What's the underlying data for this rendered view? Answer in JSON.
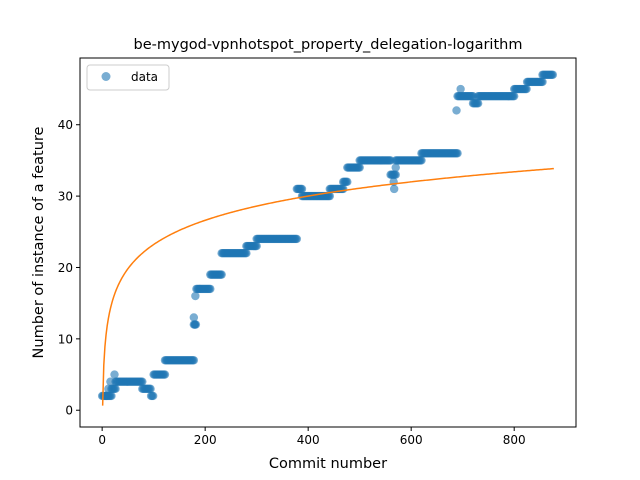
{
  "chart_data": {
    "type": "scatter",
    "title": "be-mygod-vpnhotspot_property_delegation-logarithm",
    "xlabel": "Commit number",
    "ylabel": "Number of instance of a feature",
    "xlim": [
      -43,
      920
    ],
    "ylim": [
      -2.35,
      49.35
    ],
    "xticks": [
      0,
      200,
      400,
      600,
      800
    ],
    "yticks": [
      0,
      10,
      20,
      30,
      40
    ],
    "grid": false,
    "legend": {
      "placement": "top-left",
      "entries": [
        {
          "label": "data",
          "color": "#1f77b4"
        }
      ]
    },
    "colors": {
      "data": "#1f77b4",
      "fit": "#ff7f0e"
    },
    "series": [
      {
        "name": "data",
        "kind": "scatter",
        "segments": [
          {
            "x_start": 0,
            "x_end": 18,
            "y": 2
          },
          {
            "x_start": 18,
            "x_end": 26,
            "y": 3
          },
          {
            "x_start": 26,
            "x_end": 78,
            "y": 4
          },
          {
            "x_start": 78,
            "x_end": 95,
            "y": 3
          },
          {
            "x_start": 95,
            "x_end": 100,
            "y": 2
          },
          {
            "x_start": 100,
            "x_end": 122,
            "y": 5
          },
          {
            "x_start": 122,
            "x_end": 178,
            "y": 7
          },
          {
            "x_start": 178,
            "x_end": 183,
            "y": 12
          },
          {
            "x_start": 183,
            "x_end": 190,
            "y": 17
          },
          {
            "x_start": 190,
            "x_end": 210,
            "y": 17
          },
          {
            "x_start": 210,
            "x_end": 232,
            "y": 19
          },
          {
            "x_start": 232,
            "x_end": 280,
            "y": 22
          },
          {
            "x_start": 280,
            "x_end": 300,
            "y": 23
          },
          {
            "x_start": 300,
            "x_end": 378,
            "y": 24
          },
          {
            "x_start": 378,
            "x_end": 388,
            "y": 31
          },
          {
            "x_start": 388,
            "x_end": 442,
            "y": 30
          },
          {
            "x_start": 442,
            "x_end": 468,
            "y": 31
          },
          {
            "x_start": 468,
            "x_end": 476,
            "y": 32
          },
          {
            "x_start": 476,
            "x_end": 500,
            "y": 34
          },
          {
            "x_start": 500,
            "x_end": 560,
            "y": 35
          },
          {
            "x_start": 560,
            "x_end": 570,
            "y": 33
          },
          {
            "x_start": 570,
            "x_end": 620,
            "y": 35
          },
          {
            "x_start": 620,
            "x_end": 690,
            "y": 36
          },
          {
            "x_start": 690,
            "x_end": 720,
            "y": 44
          },
          {
            "x_start": 720,
            "x_end": 730,
            "y": 43
          },
          {
            "x_start": 730,
            "x_end": 800,
            "y": 44
          },
          {
            "x_start": 800,
            "x_end": 825,
            "y": 45
          },
          {
            "x_start": 825,
            "x_end": 855,
            "y": 46
          },
          {
            "x_start": 855,
            "x_end": 875,
            "y": 47
          }
        ],
        "extra_points": [
          [
            8,
            2
          ],
          [
            12,
            3
          ],
          [
            16,
            4
          ],
          [
            24,
            5
          ],
          [
            178,
            13
          ],
          [
            180,
            12
          ],
          [
            181,
            16
          ],
          [
            566,
            32
          ],
          [
            567,
            31
          ],
          [
            570,
            34
          ],
          [
            688,
            42
          ],
          [
            696,
            45
          ]
        ]
      },
      {
        "name": "",
        "kind": "line",
        "model": "y = a*ln(x) + b",
        "a": 4.9,
        "b": 0.65,
        "x_range": [
          1,
          877
        ]
      }
    ]
  }
}
